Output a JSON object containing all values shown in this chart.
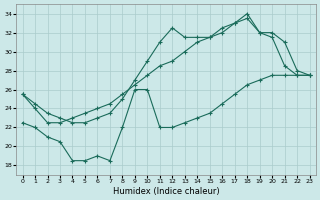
{
  "xlabel": "Humidex (Indice chaleur)",
  "xlim": [
    -0.5,
    23.5
  ],
  "ylim": [
    17,
    35
  ],
  "yticks": [
    18,
    20,
    22,
    24,
    26,
    28,
    30,
    32,
    34
  ],
  "xticks": [
    0,
    1,
    2,
    3,
    4,
    5,
    6,
    7,
    8,
    9,
    10,
    11,
    12,
    13,
    14,
    15,
    16,
    17,
    18,
    19,
    20,
    21,
    22,
    23
  ],
  "bg_color": "#cce8e8",
  "grid_color": "#aacccc",
  "line_color": "#1a6b5a",
  "line1_x": [
    0,
    1,
    2,
    3,
    4,
    5,
    6,
    7,
    8,
    9,
    10,
    11,
    12,
    13,
    14,
    15,
    16,
    17,
    18,
    19,
    20,
    21,
    22,
    23
  ],
  "line1_y": [
    25.5,
    24.0,
    22.5,
    22.5,
    23.0,
    23.5,
    24.0,
    24.5,
    25.5,
    26.5,
    27.5,
    28.5,
    29.0,
    30.0,
    31.0,
    31.5,
    32.0,
    33.0,
    34.0,
    32.0,
    31.5,
    28.5,
    27.5,
    27.5
  ],
  "line2_x": [
    0,
    1,
    2,
    3,
    4,
    5,
    6,
    7,
    8,
    9,
    10,
    11,
    12,
    13,
    14,
    15,
    16,
    17,
    18,
    19,
    20,
    21,
    22,
    23
  ],
  "line2_y": [
    25.5,
    24.5,
    23.5,
    23.0,
    22.5,
    22.5,
    23.0,
    23.5,
    25.0,
    27.0,
    29.0,
    31.0,
    32.5,
    31.5,
    31.5,
    31.5,
    32.5,
    33.0,
    33.5,
    32.0,
    32.0,
    31.0,
    28.0,
    27.5
  ],
  "line3_x": [
    0,
    1,
    2,
    3,
    4,
    5,
    6,
    7,
    8,
    9,
    10,
    11,
    12,
    13,
    14,
    15,
    16,
    17,
    18,
    19,
    20,
    21,
    22,
    23
  ],
  "line3_y": [
    22.5,
    22.0,
    21.0,
    20.5,
    18.5,
    18.5,
    19.0,
    18.5,
    22.0,
    26.0,
    26.0,
    22.0,
    22.0,
    22.5,
    23.0,
    23.5,
    24.5,
    25.5,
    26.5,
    27.0,
    27.5,
    27.5,
    27.5,
    27.5
  ]
}
